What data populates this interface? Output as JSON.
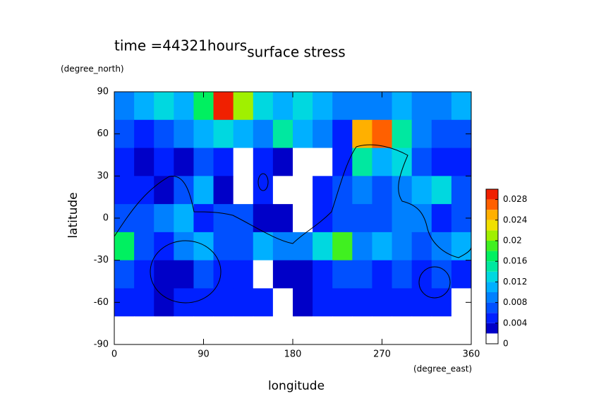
{
  "chart_data": {
    "type": "contour",
    "title": "surface stress",
    "subtitle": "time =44321hours",
    "xlabel": "longitude",
    "ylabel": "latitude",
    "xunit": "(degree_east)",
    "yunit": "(degree_north)",
    "xlim": [
      0,
      360
    ],
    "ylim": [
      -90,
      90
    ],
    "xticks": [
      0,
      90,
      180,
      270,
      360
    ],
    "yticks": [
      -90,
      -60,
      -30,
      0,
      30,
      60,
      90
    ],
    "x": [
      10,
      30,
      50,
      70,
      90,
      110,
      130,
      150,
      170,
      190,
      210,
      230,
      250,
      270,
      290,
      310,
      330,
      350
    ],
    "y": [
      80,
      60,
      40,
      20,
      0,
      -20,
      -40,
      -60,
      -80
    ],
    "z": [
      [
        0.008,
        0.01,
        0.012,
        0.01,
        0.016,
        0.028,
        0.02,
        0.012,
        0.01,
        0.012,
        0.01,
        0.008,
        0.008,
        0.008,
        0.01,
        0.008,
        0.008,
        0.01
      ],
      [
        0.006,
        0.004,
        0.006,
        0.008,
        0.01,
        0.012,
        0.01,
        0.008,
        0.014,
        0.01,
        0.008,
        0.004,
        0.024,
        0.026,
        0.014,
        0.008,
        0.006,
        0.006
      ],
      [
        0.004,
        0.002,
        0.004,
        0.002,
        0.006,
        0.004,
        0,
        0.004,
        0.002,
        0,
        0,
        0.004,
        0.014,
        0.01,
        0.012,
        0.006,
        0.004,
        0.004
      ],
      [
        0.004,
        0.004,
        0.002,
        0.006,
        0.01,
        0.002,
        0,
        0.004,
        0,
        0,
        0.004,
        0.006,
        0.008,
        0.006,
        0.008,
        0.01,
        0.012,
        0.006
      ],
      [
        0.006,
        0.006,
        0.008,
        0.01,
        0.004,
        0.006,
        0.006,
        0.002,
        0.002,
        0,
        0.004,
        0.006,
        0.006,
        0.006,
        0.008,
        0.008,
        0.004,
        0.006
      ],
      [
        0.016,
        0.006,
        0.004,
        0.008,
        0.01,
        0.006,
        0.006,
        0.01,
        0.008,
        0.008,
        0.012,
        0.018,
        0.008,
        0.01,
        0.008,
        0.006,
        0.008,
        0.01
      ],
      [
        0.006,
        0.004,
        0.002,
        0.002,
        0.006,
        0.004,
        0.004,
        0,
        0.002,
        0.002,
        0.004,
        0.006,
        0.006,
        0.004,
        0.006,
        0.004,
        0.006,
        0.004
      ],
      [
        0.004,
        0.004,
        0.002,
        0.004,
        0.004,
        0.004,
        0.004,
        0.004,
        0,
        0.002,
        0.004,
        0.004,
        0.004,
        0.004,
        0.004,
        0.004,
        0.004,
        0
      ],
      [
        0,
        0,
        0,
        0,
        0,
        0,
        0,
        0,
        0,
        0,
        0,
        0,
        0,
        0,
        0,
        0,
        0,
        0
      ]
    ],
    "levels": [
      0,
      0.002,
      0.004,
      0.006,
      0.008,
      0.01,
      0.012,
      0.014,
      0.016,
      0.018,
      0.02,
      0.022,
      0.024,
      0.026,
      0.028,
      0.03
    ],
    "colors": [
      "#ffffff",
      "#0000c8",
      "#0020ff",
      "#0050ff",
      "#0080ff",
      "#00b0ff",
      "#00d8e0",
      "#00e8a0",
      "#00f060",
      "#40f020",
      "#a0f000",
      "#f0e000",
      "#ffb000",
      "#ff6000",
      "#f02000"
    ],
    "colorbar_ticks": [
      0,
      0.004,
      0.008,
      0.012,
      0.016,
      0.02,
      0.024,
      0.028
    ]
  }
}
